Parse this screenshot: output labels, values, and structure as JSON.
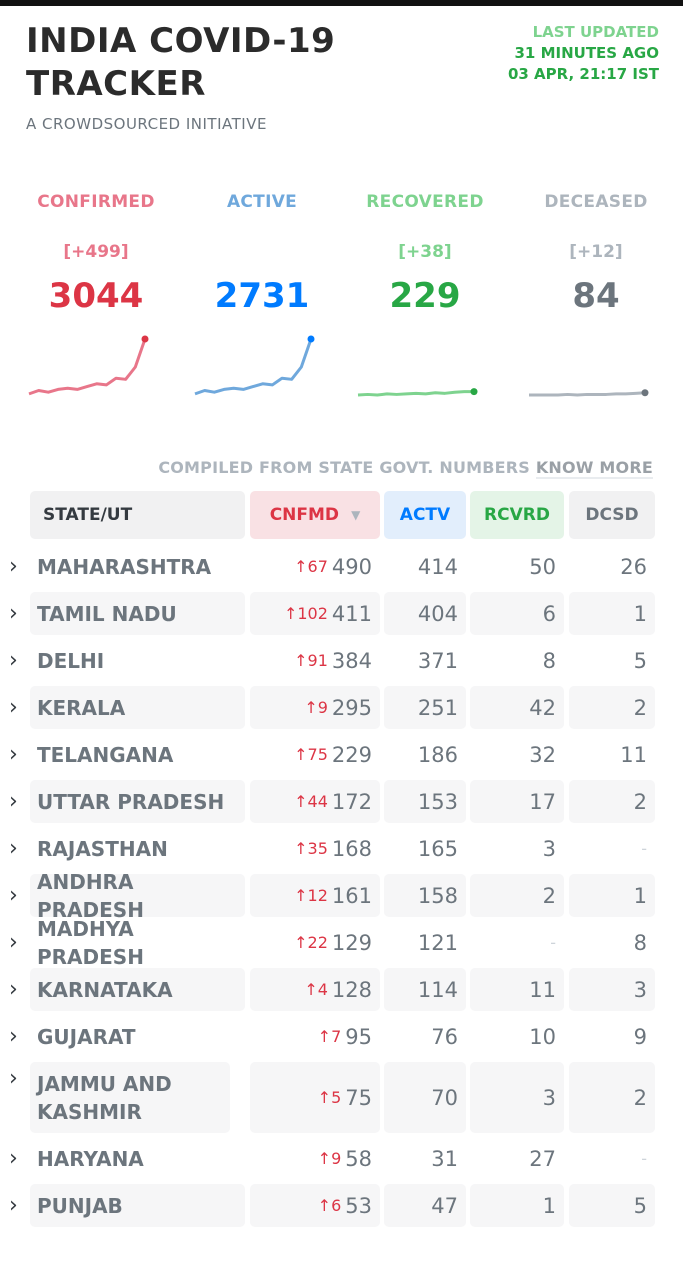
{
  "header": {
    "title_line1": "INDIA COVID-19",
    "title_line2": "TRACKER",
    "subtitle": "A CROWDSOURCED INITIATIVE",
    "last_updated_label": "LAST UPDATED",
    "last_updated_ago": "31 MINUTES AGO",
    "last_updated_time": "03 APR, 21:17 IST"
  },
  "stats": [
    {
      "label": "CONFIRMED",
      "delta": "[+499]",
      "value": "3044",
      "color": "#dc3545",
      "label_color": "#e8768a",
      "trend": [
        0.02,
        0.08,
        0.05,
        0.1,
        0.12,
        0.1,
        0.15,
        0.2,
        0.18,
        0.3,
        0.28,
        0.5,
        1.0
      ]
    },
    {
      "label": "ACTIVE",
      "delta": "",
      "value": "2731",
      "color": "#007bff",
      "label_color": "#6fa8dc",
      "trend": [
        0.02,
        0.08,
        0.05,
        0.1,
        0.12,
        0.1,
        0.15,
        0.2,
        0.18,
        0.3,
        0.28,
        0.5,
        1.0
      ]
    },
    {
      "label": "RECOVERED",
      "delta": "[+38]",
      "value": "229",
      "color": "#28a745",
      "label_color": "#7ed38f",
      "trend": [
        0.0,
        0.01,
        0.0,
        0.02,
        0.01,
        0.02,
        0.03,
        0.02,
        0.04,
        0.03,
        0.05,
        0.06,
        0.06
      ]
    },
    {
      "label": "DECEASED",
      "delta": "[+12]",
      "value": "84",
      "color": "#6c757d",
      "label_color": "#adb5bd",
      "trend": [
        0.0,
        0.0,
        0.0,
        0.0,
        0.01,
        0.0,
        0.01,
        0.01,
        0.01,
        0.02,
        0.02,
        0.03,
        0.04
      ]
    }
  ],
  "compiled_text": "COMPILED FROM STATE GOVT. NUMBERS",
  "know_more": "KNOW MORE",
  "table": {
    "headers": {
      "state": "STATE/UT",
      "confirmed": "CNFMD",
      "active": "ACTV",
      "recovered": "RCVRD",
      "deceased": "DCSD"
    },
    "sort_indicator": "▼",
    "rows": [
      {
        "state": "MAHARASHTRA",
        "delta": "↑67",
        "confirmed": "490",
        "active": "414",
        "recovered": "50",
        "deceased": "26"
      },
      {
        "state": "TAMIL NADU",
        "delta": "↑102",
        "confirmed": "411",
        "active": "404",
        "recovered": "6",
        "deceased": "1"
      },
      {
        "state": "DELHI",
        "delta": "↑91",
        "confirmed": "384",
        "active": "371",
        "recovered": "8",
        "deceased": "5"
      },
      {
        "state": "KERALA",
        "delta": "↑9",
        "confirmed": "295",
        "active": "251",
        "recovered": "42",
        "deceased": "2"
      },
      {
        "state": "TELANGANA",
        "delta": "↑75",
        "confirmed": "229",
        "active": "186",
        "recovered": "32",
        "deceased": "11"
      },
      {
        "state": "UTTAR PRADESH",
        "delta": "↑44",
        "confirmed": "172",
        "active": "153",
        "recovered": "17",
        "deceased": "2"
      },
      {
        "state": "RAJASTHAN",
        "delta": "↑35",
        "confirmed": "168",
        "active": "165",
        "recovered": "3",
        "deceased": "-"
      },
      {
        "state": "ANDHRA PRADESH",
        "delta": "↑12",
        "confirmed": "161",
        "active": "158",
        "recovered": "2",
        "deceased": "1"
      },
      {
        "state": "MADHYA PRADESH",
        "delta": "↑22",
        "confirmed": "129",
        "active": "121",
        "recovered": "-",
        "deceased": "8"
      },
      {
        "state": "KARNATAKA",
        "delta": "↑4",
        "confirmed": "128",
        "active": "114",
        "recovered": "11",
        "deceased": "3"
      },
      {
        "state": "GUJARAT",
        "delta": "↑7",
        "confirmed": "95",
        "active": "76",
        "recovered": "10",
        "deceased": "9"
      },
      {
        "state": "JAMMU AND KASHMIR",
        "delta": "↑5",
        "confirmed": "75",
        "active": "70",
        "recovered": "3",
        "deceased": "2"
      },
      {
        "state": "HARYANA",
        "delta": "↑9",
        "confirmed": "58",
        "active": "31",
        "recovered": "27",
        "deceased": "-"
      },
      {
        "state": "PUNJAB",
        "delta": "↑6",
        "confirmed": "53",
        "active": "47",
        "recovered": "1",
        "deceased": "5"
      }
    ]
  }
}
